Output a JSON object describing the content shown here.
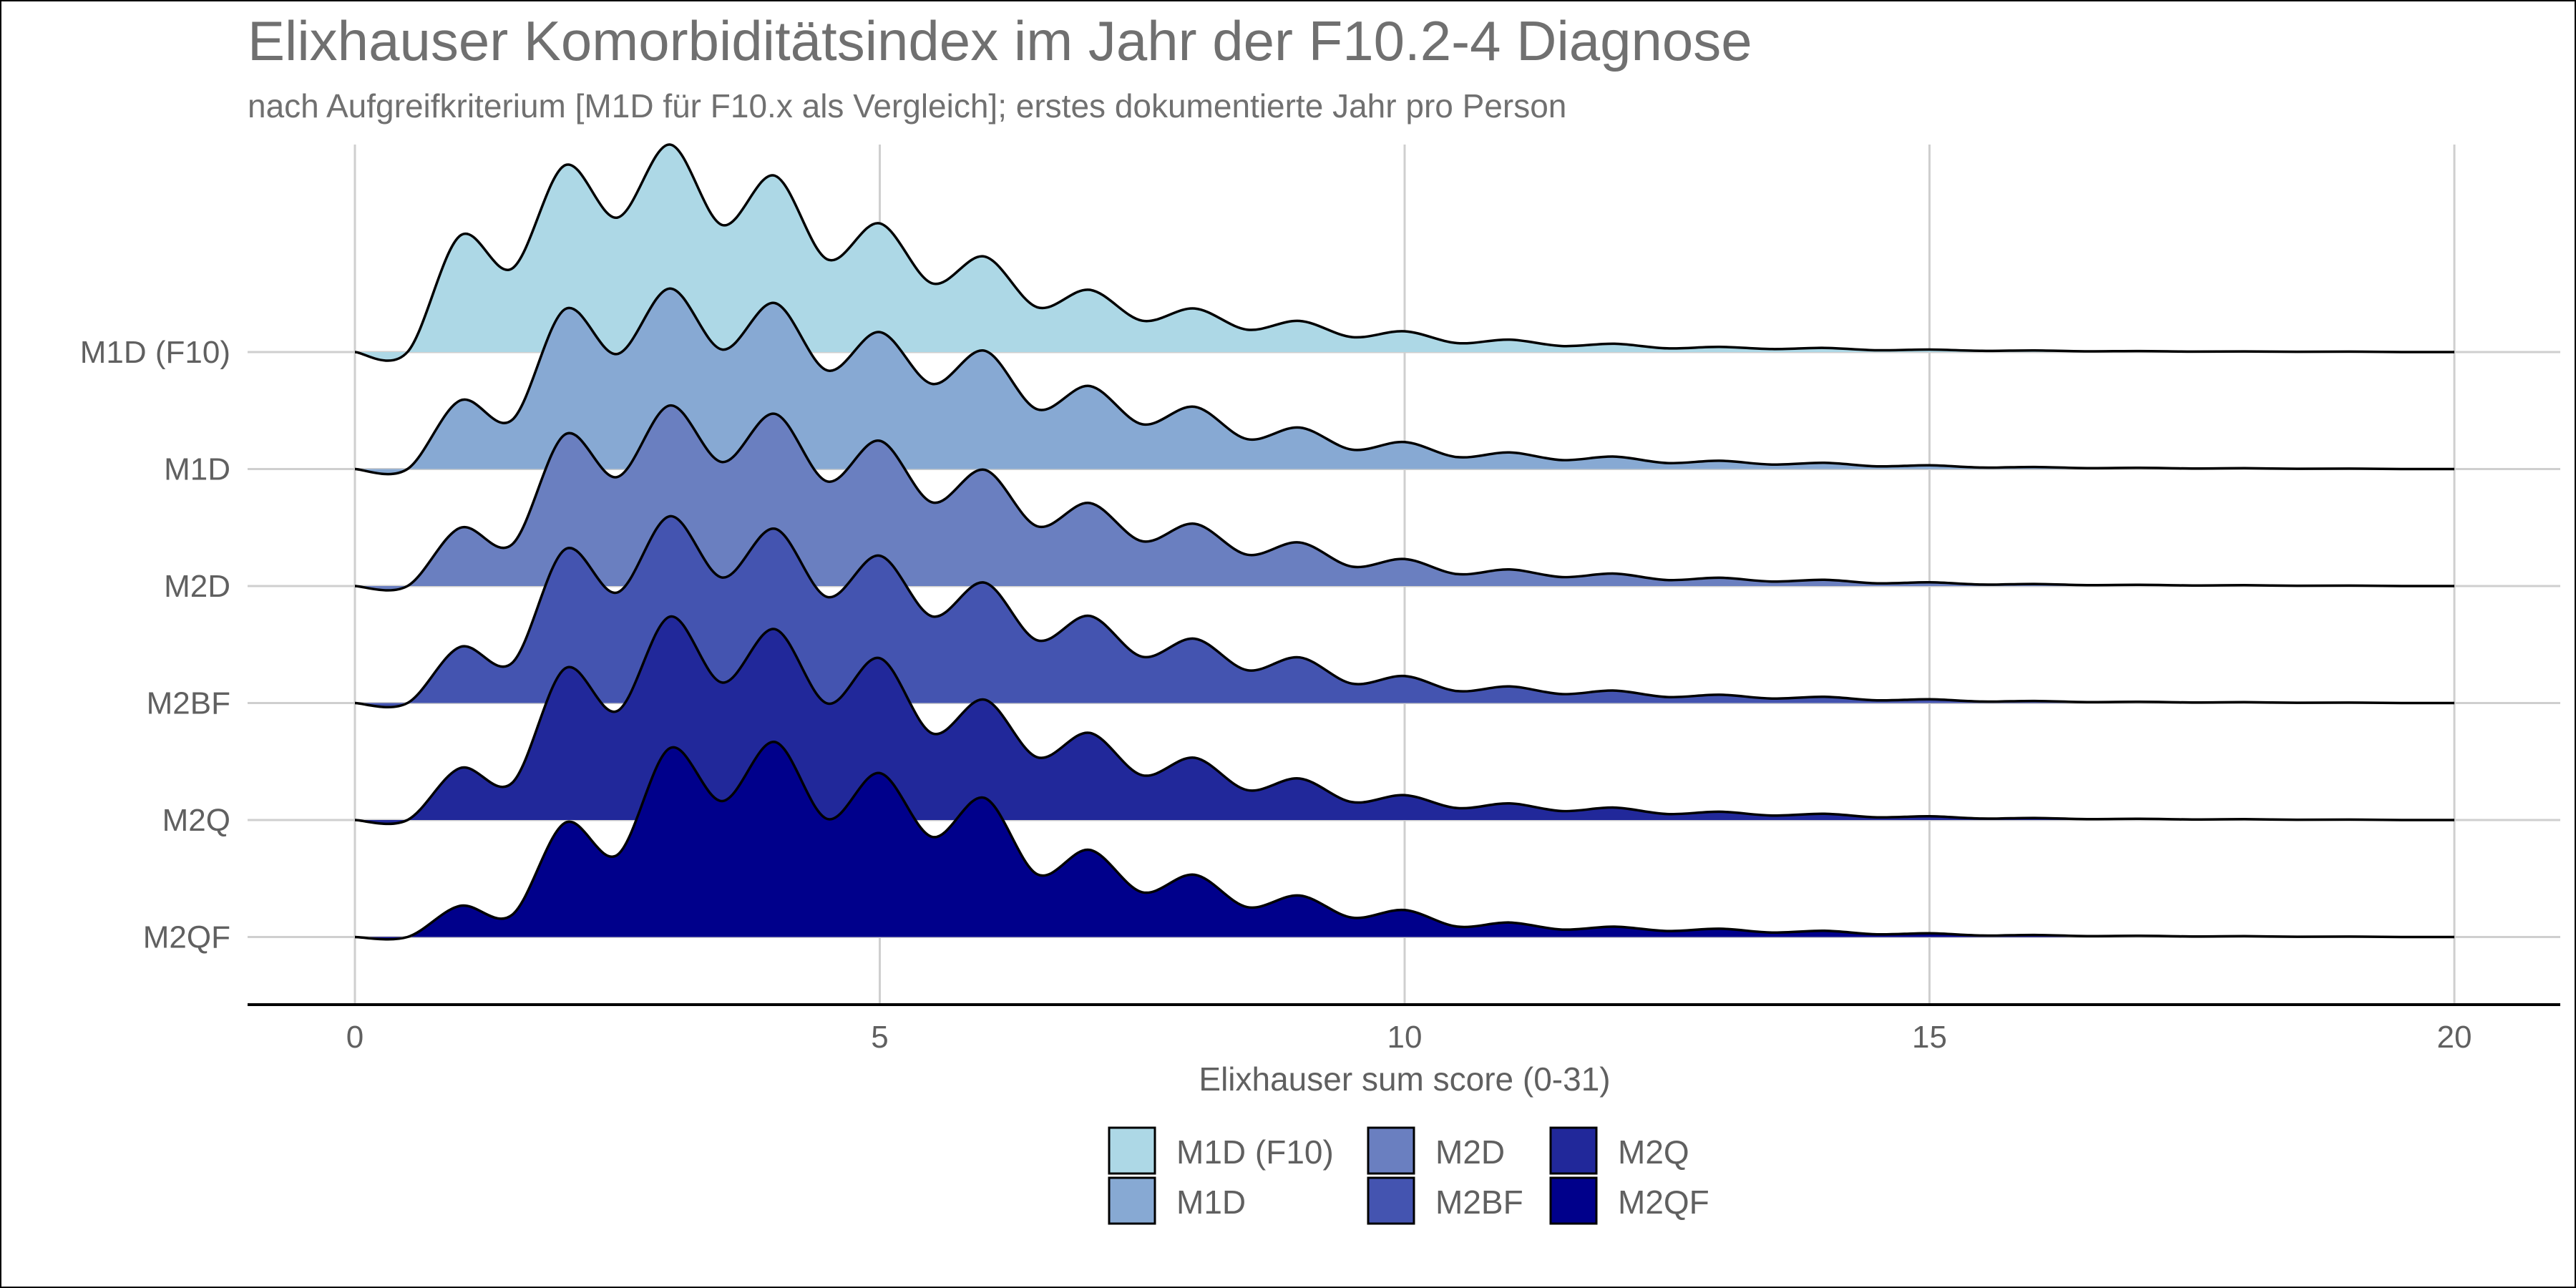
{
  "chart_data": {
    "type": "ridgeline",
    "title": "Elixhauser Komorbiditätsindex im Jahr der F10.2-4 Diagnose",
    "subtitle": "nach Aufgreifkriterium [M1D für F10.x als Vergleich]; erstes dokumentierte Jahr pro Person",
    "xlabel": "Elixhauser sum score (0-31)",
    "ylabel": "",
    "xlim": [
      0,
      20
    ],
    "x_ticks": [
      0,
      5,
      10,
      15,
      20
    ],
    "grid": true,
    "legend_position": "bottom",
    "x": [
      0,
      1,
      2,
      3,
      4,
      5,
      6,
      7,
      8,
      9,
      10,
      11,
      12,
      13,
      14,
      15,
      16,
      17,
      18,
      19,
      20
    ],
    "series": [
      {
        "name": "M1D (F10)",
        "color": "#add8e6",
        "values": [
          0.0,
          0.56,
          0.9,
          1.0,
          0.85,
          0.62,
          0.46,
          0.3,
          0.21,
          0.15,
          0.1,
          0.06,
          0.04,
          0.025,
          0.02,
          0.012,
          0.008,
          0.005,
          0.003,
          0.002,
          0.0
        ]
      },
      {
        "name": "M1D",
        "color": "#87a9d3",
        "values": [
          0.0,
          0.33,
          0.77,
          0.87,
          0.8,
          0.66,
          0.57,
          0.4,
          0.3,
          0.2,
          0.13,
          0.08,
          0.06,
          0.04,
          0.03,
          0.018,
          0.01,
          0.006,
          0.004,
          0.002,
          0.0
        ]
      },
      {
        "name": "M2D",
        "color": "#6a7fc0",
        "values": [
          0.0,
          0.28,
          0.73,
          0.87,
          0.83,
          0.7,
          0.56,
          0.4,
          0.3,
          0.21,
          0.13,
          0.08,
          0.06,
          0.04,
          0.03,
          0.018,
          0.01,
          0.006,
          0.004,
          0.002,
          0.0
        ]
      },
      {
        "name": "M2BF",
        "color": "#4454b0",
        "values": [
          0.0,
          0.27,
          0.74,
          0.9,
          0.84,
          0.71,
          0.58,
          0.42,
          0.31,
          0.22,
          0.13,
          0.08,
          0.06,
          0.04,
          0.03,
          0.018,
          0.01,
          0.006,
          0.004,
          0.002,
          0.0
        ]
      },
      {
        "name": "M2Q",
        "color": "#21289a",
        "values": [
          0.0,
          0.25,
          0.73,
          0.98,
          0.92,
          0.78,
          0.58,
          0.42,
          0.3,
          0.2,
          0.12,
          0.08,
          0.06,
          0.04,
          0.03,
          0.018,
          0.01,
          0.006,
          0.004,
          0.002,
          0.0
        ]
      },
      {
        "name": "M2QF",
        "color": "#00008b",
        "values": [
          0.0,
          0.15,
          0.55,
          0.91,
          0.94,
          0.79,
          0.67,
          0.42,
          0.3,
          0.2,
          0.13,
          0.07,
          0.05,
          0.04,
          0.03,
          0.018,
          0.01,
          0.006,
          0.004,
          0.002,
          0.0
        ]
      }
    ]
  }
}
